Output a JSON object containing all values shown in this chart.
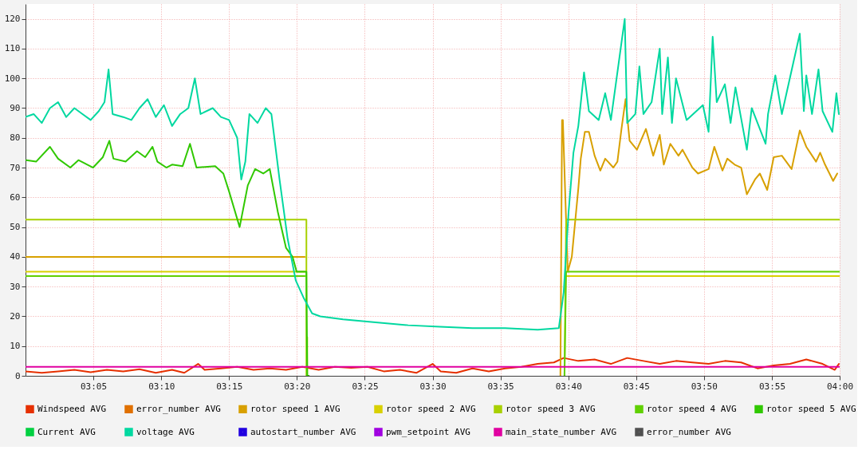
{
  "chart_data": {
    "type": "line",
    "xlim": [
      3.0,
      4.0
    ],
    "ylim": [
      0,
      125
    ],
    "xticks": [
      {
        "value": 3.0833,
        "label": "03:05"
      },
      {
        "value": 3.1667,
        "label": "03:10"
      },
      {
        "value": 3.25,
        "label": "03:15"
      },
      {
        "value": 3.3333,
        "label": "03:20"
      },
      {
        "value": 3.4167,
        "label": "03:25"
      },
      {
        "value": 3.5,
        "label": "03:30"
      },
      {
        "value": 3.5833,
        "label": "03:35"
      },
      {
        "value": 3.6667,
        "label": "03:40"
      },
      {
        "value": 3.75,
        "label": "03:45"
      },
      {
        "value": 3.8333,
        "label": "03:50"
      },
      {
        "value": 3.9167,
        "label": "03:55"
      },
      {
        "value": 4.0,
        "label": "04:00"
      }
    ],
    "yticks": [
      0,
      10,
      20,
      30,
      40,
      50,
      60,
      70,
      80,
      90,
      100,
      110,
      120
    ],
    "grid": true,
    "legend": "bottom",
    "marker": "none",
    "line_style": "solid",
    "series": [
      {
        "name": "Windspeed AVG",
        "color": "#e63000",
        "x": [
          3.0,
          3.02,
          3.04,
          3.06,
          3.08,
          3.1,
          3.12,
          3.14,
          3.16,
          3.18,
          3.195,
          3.212,
          3.22,
          3.24,
          3.26,
          3.28,
          3.3,
          3.32,
          3.34,
          3.36,
          3.38,
          3.4,
          3.42,
          3.44,
          3.46,
          3.48,
          3.5,
          3.51,
          3.529,
          3.549,
          3.569,
          3.589,
          3.609,
          3.629,
          3.649,
          3.661,
          3.679,
          3.699,
          3.719,
          3.739,
          3.759,
          3.779,
          3.799,
          3.819,
          3.839,
          3.859,
          3.879,
          3.899,
          3.919,
          3.939,
          3.959,
          3.979,
          3.994,
          3.999
        ],
        "values": [
          1.5,
          1,
          1.5,
          2,
          1.2,
          2,
          1.5,
          2.2,
          1,
          2,
          1,
          4,
          2,
          2.5,
          3,
          2,
          2.5,
          2,
          3,
          2,
          3,
          2.7,
          3,
          1.5,
          2,
          1,
          4,
          1.5,
          1,
          2.5,
          1.5,
          2.5,
          3,
          4,
          4.5,
          6,
          5,
          5.5,
          4,
          6,
          5,
          4,
          5,
          4.5,
          4,
          5,
          4.5,
          2.5,
          3.5,
          4,
          5.5,
          4,
          2,
          4
        ]
      },
      {
        "name": "error_number AVG",
        "color": "#e07000"
      },
      {
        "name": "rotor speed 1 AVG",
        "color": "#d8a000",
        "x": [
          3.0,
          3.343,
          null,
          3.657,
          3.659,
          3.66,
          3.666,
          3.671,
          3.679,
          3.682,
          3.687,
          3.692,
          3.699,
          3.706,
          3.712,
          3.722,
          3.727,
          3.732,
          3.737,
          3.742,
          3.751,
          3.762,
          3.771,
          3.779,
          3.784,
          3.792,
          3.802,
          3.807,
          3.819,
          3.826,
          3.839,
          3.846,
          3.856,
          3.862,
          3.871,
          3.879,
          3.886,
          3.896,
          3.902,
          3.911,
          3.919,
          3.929,
          3.941,
          3.951,
          3.959,
          3.971,
          3.976,
          3.982,
          3.992,
          3.997
        ],
        "values": [
          40,
          40,
          null,
          0,
          86,
          86,
          35,
          40,
          63,
          73,
          82,
          82,
          74,
          69,
          73,
          70,
          72,
          83,
          93,
          79,
          76,
          83,
          74,
          81,
          71,
          78,
          74,
          76,
          70,
          68,
          69.5,
          77,
          69,
          73,
          71,
          70,
          61,
          66,
          68,
          62.5,
          73.5,
          74,
          69.5,
          82.5,
          77,
          72,
          75,
          71,
          65.5,
          68
        ]
      },
      {
        "name": "rotor speed 2 AVG",
        "color": "#d8d000",
        "x": [
          3.0,
          3.343,
          null,
          3.664,
          4.0
        ],
        "values": [
          35,
          35,
          null,
          33.5,
          33.5
        ]
      },
      {
        "name": "rotor speed 3 AVG",
        "color": "#a8d000",
        "x": [
          3.0,
          3.345,
          3.345,
          3.346,
          3.346,
          null,
          3.662,
          3.664,
          4.0
        ],
        "values": [
          52.5,
          52.5,
          0,
          0,
          13,
          null,
          0,
          52.5,
          52.5
        ]
      },
      {
        "name": "rotor speed 4 AVG",
        "color": "#60d000",
        "x": [
          3.0,
          3.343,
          null,
          3.662,
          3.664,
          4.0
        ],
        "values": [
          33.5,
          33.5,
          null,
          0,
          35,
          35
        ]
      },
      {
        "name": "rotor speed 5 AVG",
        "color": "#30c800",
        "x": [
          3.001,
          3.013,
          3.03,
          3.04,
          3.055,
          3.065,
          3.083,
          3.095,
          3.103,
          3.108,
          3.123,
          3.137,
          3.147,
          3.156,
          3.162,
          3.173,
          3.18,
          3.193,
          3.202,
          3.21,
          3.233,
          3.243,
          3.25,
          3.263,
          3.273,
          3.282,
          3.292,
          3.3,
          3.31,
          3.32,
          3.328,
          3.333,
          3.345,
          3.346,
          3.348
        ],
        "values": [
          72.5,
          72,
          77,
          73,
          70,
          72.5,
          70,
          73.5,
          79,
          73,
          72,
          75.5,
          73.5,
          77,
          72,
          70,
          71,
          70.5,
          78,
          70,
          70.5,
          68,
          62,
          50,
          64,
          69.5,
          68,
          69.5,
          55,
          43,
          40,
          35,
          35,
          0,
          0
        ]
      },
      {
        "name": "Current AVG",
        "color": "#00d040"
      },
      {
        "name": "voltage AVG",
        "color": "#00d8a0",
        "x": [
          3.0,
          3.01,
          3.02,
          3.03,
          3.04,
          3.05,
          3.06,
          3.07,
          3.08,
          3.09,
          3.097,
          3.102,
          3.107,
          3.12,
          3.13,
          3.14,
          3.15,
          3.16,
          3.17,
          3.18,
          3.19,
          3.2,
          3.208,
          3.215,
          3.23,
          3.24,
          3.25,
          3.26,
          3.265,
          3.27,
          3.275,
          3.285,
          3.295,
          3.302,
          3.312,
          3.322,
          3.332,
          3.342,
          3.352,
          3.362,
          3.39,
          3.43,
          3.47,
          3.509,
          3.549,
          3.589,
          3.629,
          3.655,
          3.661,
          3.667,
          3.673,
          3.679,
          3.686,
          3.692,
          3.704,
          3.712,
          3.719,
          3.731,
          3.736,
          3.739,
          3.749,
          3.754,
          3.759,
          3.769,
          3.779,
          3.782,
          3.789,
          3.794,
          3.799,
          3.812,
          3.832,
          3.839,
          3.844,
          3.849,
          3.859,
          3.866,
          3.872,
          3.886,
          3.892,
          3.909,
          3.912,
          3.921,
          3.929,
          3.951,
          3.956,
          3.959,
          3.966,
          3.974,
          3.979,
          3.991,
          3.996,
          3.999
        ],
        "values": [
          87,
          88,
          85,
          90,
          92,
          87,
          90,
          88,
          86,
          89,
          92,
          103,
          88,
          87,
          86,
          90,
          93,
          87,
          91,
          84,
          88,
          90,
          100,
          88,
          90,
          87,
          86,
          80,
          66,
          72,
          88,
          85,
          90,
          88,
          66,
          46,
          32,
          26,
          21,
          20,
          19,
          18,
          17,
          16.5,
          16,
          16,
          15.5,
          16,
          28,
          55,
          75,
          84,
          102,
          89,
          86,
          95,
          86,
          110,
          120,
          85,
          88,
          104,
          88,
          92,
          110,
          88,
          107,
          85,
          100,
          86,
          91,
          82,
          114,
          92,
          98,
          85,
          97,
          76,
          90,
          78,
          88,
          101,
          88,
          115,
          89,
          101,
          88,
          103,
          89,
          82,
          95,
          88
        ]
      },
      {
        "name": "autostart_number AVG",
        "color": "#2000e0"
      },
      {
        "name": "pwm_setpoint AVG",
        "color": "#a000e0"
      },
      {
        "name": "main_state_number AVG",
        "color": "#e000a0",
        "x": [
          3.0,
          4.0
        ],
        "values": [
          3,
          3
        ]
      },
      {
        "name": "error_number AVG",
        "color": "#505050"
      }
    ]
  }
}
